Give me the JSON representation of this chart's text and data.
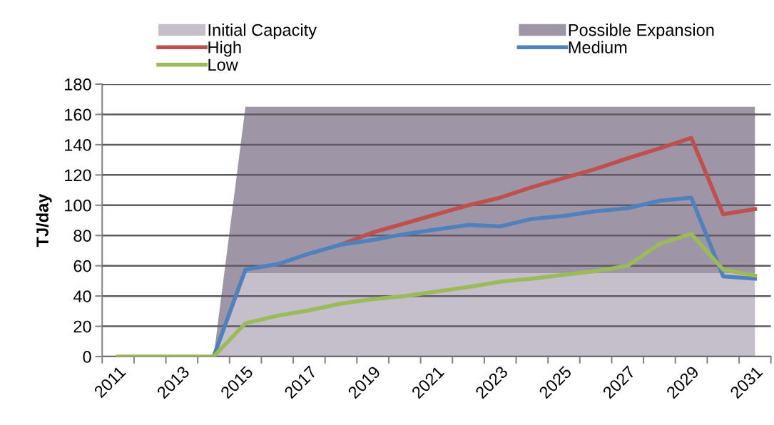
{
  "chart_data": {
    "type": "line",
    "ylabel": "TJ/day",
    "categories": [
      "2011",
      null,
      "2013",
      null,
      "2015",
      null,
      "2017",
      null,
      "2019",
      null,
      "2021",
      null,
      "2023",
      null,
      "2025",
      null,
      "2027",
      null,
      "2029",
      null,
      "2031"
    ],
    "stacked": true,
    "series": [
      {
        "name": "Initial Capacity",
        "type": "area",
        "color": "#c5bfcb",
        "values": [
          0,
          0,
          0,
          0,
          55,
          55,
          55,
          55,
          55,
          55,
          55,
          55,
          55,
          55,
          55,
          55,
          55,
          55,
          55,
          55,
          55
        ]
      },
      {
        "name": "Possible Expansion",
        "type": "area",
        "color": "#9e96a6",
        "values": [
          0,
          0,
          0,
          0,
          110,
          110,
          110,
          110,
          110,
          110,
          110,
          110,
          110,
          110,
          110,
          110,
          110,
          110,
          110,
          110,
          110
        ]
      },
      {
        "name": "High",
        "color": "#c0504d",
        "values": [
          null,
          null,
          null,
          null,
          null,
          null,
          null,
          74,
          82,
          88,
          94,
          100,
          105,
          112,
          118,
          124,
          131,
          137.5,
          144.5,
          94,
          97.5
        ]
      },
      {
        "name": "Medium",
        "color": "#4f81bd",
        "values": [
          null,
          null,
          null,
          0,
          57.5,
          61,
          68,
          74,
          77,
          81,
          84,
          87,
          86,
          91,
          93,
          96,
          98,
          103,
          105,
          53,
          51.5
        ]
      },
      {
        "name": "Low",
        "color": "#9bbb59",
        "values": [
          0,
          0,
          0,
          0,
          22,
          27,
          30.5,
          35,
          38,
          40,
          43,
          46,
          49.5,
          51.5,
          54,
          56.5,
          60,
          74.5,
          81,
          57.5,
          53.5
        ]
      }
    ],
    "ylim": [
      0,
      180
    ],
    "yticks": [
      0,
      20,
      40,
      60,
      80,
      100,
      120,
      140,
      160,
      180
    ],
    "grid": "y",
    "legend": "top",
    "marker": "none",
    "line_style": "solid"
  }
}
